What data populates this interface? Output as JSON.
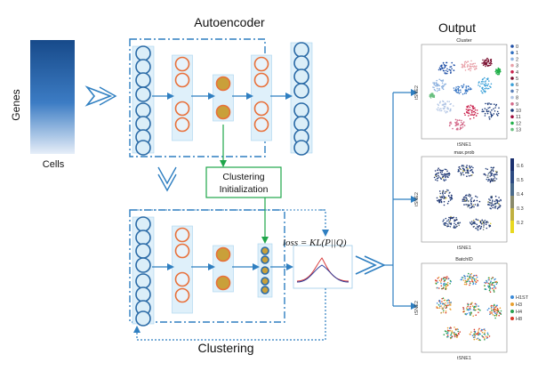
{
  "labels": {
    "genes": "Genes",
    "cells": "Cells",
    "autoencoder": "Autoencoder",
    "clustering": "Clustering",
    "output": "Output",
    "init_line1": "Clustering",
    "init_line2": "Initialization",
    "loss": "loss = KL(P||Q)"
  },
  "colors": {
    "blue_line": "#2f7fc1",
    "node_fill": "#dbeef8",
    "node_edge": "#2a6aa6",
    "orange_edge": "#e8703a",
    "bottleneck_fill": "#c9a03a",
    "green": "#1fa64a",
    "panel_bg": "#dff0fa"
  },
  "plots": [
    {
      "title": "Cluster",
      "xlabel": "tSNE1",
      "ylabel": "tSNE2",
      "legend": [
        {
          "label": "0",
          "color": "#1f4fa6"
        },
        {
          "label": "1",
          "color": "#2e6fc1"
        },
        {
          "label": "2",
          "color": "#8fb3e0"
        },
        {
          "label": "3",
          "color": "#e8a0a8"
        },
        {
          "label": "4",
          "color": "#c9224d"
        },
        {
          "label": "5",
          "color": "#7a1030"
        },
        {
          "label": "6",
          "color": "#3aa0d8"
        },
        {
          "label": "7",
          "color": "#5a7fb8"
        },
        {
          "label": "8",
          "color": "#b0c4e4"
        },
        {
          "label": "9",
          "color": "#d46a8a"
        },
        {
          "label": "10",
          "color": "#1a3a7a"
        },
        {
          "label": "11",
          "color": "#a01040"
        },
        {
          "label": "12",
          "color": "#22b04a"
        },
        {
          "label": "13",
          "color": "#6ac080"
        }
      ]
    },
    {
      "title": "max.prob",
      "xlabel": "tSNE1",
      "ylabel": "tSNE2",
      "colorbar": [
        "0.6",
        "0.5",
        "0.4",
        "0.3",
        "0.2"
      ]
    },
    {
      "title": "BatchID",
      "xlabel": "tSNE1",
      "ylabel": "tSNE2",
      "legend": [
        {
          "label": "H1ST",
          "color": "#3a8ad8"
        },
        {
          "label": "H3",
          "color": "#e8a030"
        },
        {
          "label": "H4",
          "color": "#28a050"
        },
        {
          "label": "H8",
          "color": "#d83a2a"
        }
      ]
    }
  ]
}
